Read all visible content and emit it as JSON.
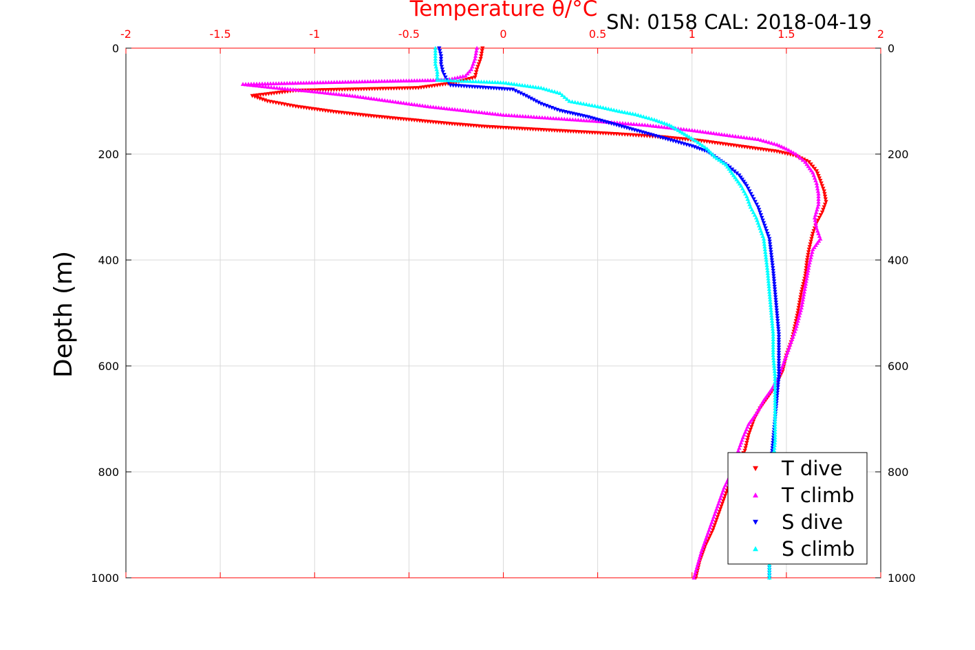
{
  "chart_data": {
    "type": "scatter",
    "title": "Temperature θ/°C",
    "caption": "SN: 0158  CAL: 2018-04-19",
    "xlabel": "Temperature θ/°C",
    "ylabel": "Depth (m)",
    "xlim": [
      -2,
      2
    ],
    "ylim": [
      0,
      1000
    ],
    "y_reversed": true,
    "x_axis_position": "top",
    "x_ticks": [
      "-2",
      "-1.5",
      "-1",
      "-0.5",
      "0",
      "0.5",
      "1",
      "1.5",
      "2"
    ],
    "y_ticks": [
      "0",
      "200",
      "400",
      "600",
      "800",
      "1000"
    ],
    "grid": true,
    "legend_position": "bottom-right",
    "colors": {
      "axis_top": "#ff0000",
      "t_dive": "#ff0000",
      "t_climb": "#ff00ff",
      "s_dive": "#0000ff",
      "s_climb": "#00ffff"
    },
    "series": [
      {
        "name": "T dive",
        "marker": "triangle-down",
        "color": "#ff0000",
        "points": [
          [
            -0.11,
            0
          ],
          [
            -0.12,
            20
          ],
          [
            -0.14,
            40
          ],
          [
            -0.15,
            55
          ],
          [
            -0.25,
            65
          ],
          [
            -0.45,
            75
          ],
          [
            -1.1,
            80
          ],
          [
            -1.33,
            90
          ],
          [
            -1.25,
            100
          ],
          [
            -1.1,
            110
          ],
          [
            -0.9,
            120
          ],
          [
            -0.7,
            128
          ],
          [
            -0.5,
            135
          ],
          [
            -0.3,
            142
          ],
          [
            -0.1,
            148
          ],
          [
            0.1,
            152
          ],
          [
            0.4,
            158
          ],
          [
            0.6,
            162
          ],
          [
            0.85,
            168
          ],
          [
            1.05,
            175
          ],
          [
            1.25,
            185
          ],
          [
            1.45,
            195
          ],
          [
            1.55,
            203
          ],
          [
            1.62,
            215
          ],
          [
            1.66,
            232
          ],
          [
            1.68,
            250
          ],
          [
            1.7,
            270
          ],
          [
            1.71,
            290
          ],
          [
            1.69,
            310
          ],
          [
            1.66,
            330
          ],
          [
            1.64,
            350
          ],
          [
            1.62,
            380
          ],
          [
            1.61,
            400
          ],
          [
            1.6,
            430
          ],
          [
            1.58,
            460
          ],
          [
            1.56,
            500
          ],
          [
            1.53,
            550
          ],
          [
            1.5,
            580
          ],
          [
            1.48,
            610
          ],
          [
            1.44,
            640
          ],
          [
            1.4,
            660
          ],
          [
            1.36,
            680
          ],
          [
            1.33,
            700
          ],
          [
            1.3,
            730
          ],
          [
            1.28,
            760
          ],
          [
            1.23,
            790
          ],
          [
            1.2,
            820
          ],
          [
            1.17,
            850
          ],
          [
            1.14,
            880
          ],
          [
            1.11,
            910
          ],
          [
            1.07,
            940
          ],
          [
            1.04,
            970
          ],
          [
            1.02,
            1000
          ]
        ]
      },
      {
        "name": "T climb",
        "marker": "triangle-up",
        "color": "#ff00ff",
        "points": [
          [
            -0.14,
            0
          ],
          [
            -0.15,
            20
          ],
          [
            -0.17,
            40
          ],
          [
            -0.2,
            52
          ],
          [
            -0.3,
            60
          ],
          [
            -0.6,
            62
          ],
          [
            -1.0,
            65
          ],
          [
            -1.38,
            68
          ],
          [
            -1.2,
            75
          ],
          [
            -1.0,
            82
          ],
          [
            -0.8,
            90
          ],
          [
            -0.6,
            100
          ],
          [
            -0.4,
            110
          ],
          [
            -0.2,
            118
          ],
          [
            0.0,
            126
          ],
          [
            0.25,
            132
          ],
          [
            0.5,
            138
          ],
          [
            0.75,
            145
          ],
          [
            1.0,
            155
          ],
          [
            1.2,
            165
          ],
          [
            1.35,
            172
          ],
          [
            1.45,
            182
          ],
          [
            1.5,
            190
          ],
          [
            1.55,
            200
          ],
          [
            1.6,
            215
          ],
          [
            1.64,
            235
          ],
          [
            1.66,
            255
          ],
          [
            1.67,
            275
          ],
          [
            1.67,
            295
          ],
          [
            1.65,
            320
          ],
          [
            1.66,
            340
          ],
          [
            1.68,
            360
          ],
          [
            1.64,
            380
          ],
          [
            1.62,
            410
          ],
          [
            1.6,
            450
          ],
          [
            1.58,
            490
          ],
          [
            1.55,
            530
          ],
          [
            1.52,
            560
          ],
          [
            1.49,
            590
          ],
          [
            1.46,
            620
          ],
          [
            1.42,
            645
          ],
          [
            1.38,
            665
          ],
          [
            1.34,
            690
          ],
          [
            1.3,
            710
          ],
          [
            1.27,
            735
          ],
          [
            1.24,
            765
          ],
          [
            1.21,
            800
          ],
          [
            1.17,
            830
          ],
          [
            1.14,
            860
          ],
          [
            1.11,
            890
          ],
          [
            1.08,
            920
          ],
          [
            1.05,
            950
          ],
          [
            1.03,
            975
          ],
          [
            1.01,
            1000
          ]
        ]
      },
      {
        "name": "S dive",
        "marker": "triangle-down",
        "color": "#0000ff",
        "points": [
          [
            -0.34,
            0
          ],
          [
            -0.33,
            15
          ],
          [
            -0.33,
            30
          ],
          [
            -0.32,
            45
          ],
          [
            -0.3,
            60
          ],
          [
            -0.28,
            70
          ],
          [
            0.05,
            78
          ],
          [
            0.12,
            90
          ],
          [
            0.2,
            105
          ],
          [
            0.3,
            118
          ],
          [
            0.45,
            130
          ],
          [
            0.6,
            145
          ],
          [
            0.75,
            160
          ],
          [
            0.9,
            175
          ],
          [
            1.0,
            185
          ],
          [
            1.08,
            195
          ],
          [
            1.14,
            210
          ],
          [
            1.2,
            225
          ],
          [
            1.25,
            240
          ],
          [
            1.29,
            260
          ],
          [
            1.32,
            280
          ],
          [
            1.35,
            300
          ],
          [
            1.37,
            320
          ],
          [
            1.39,
            340
          ],
          [
            1.41,
            360
          ],
          [
            1.42,
            390
          ],
          [
            1.43,
            420
          ],
          [
            1.44,
            460
          ],
          [
            1.45,
            500
          ],
          [
            1.46,
            540
          ],
          [
            1.46,
            580
          ],
          [
            1.46,
            620
          ],
          [
            1.45,
            660
          ],
          [
            1.44,
            700
          ],
          [
            1.43,
            740
          ],
          [
            1.42,
            780
          ],
          [
            1.42,
            820
          ],
          [
            1.42,
            860
          ],
          [
            1.42,
            900
          ],
          [
            1.42,
            940
          ],
          [
            1.41,
            970
          ],
          [
            1.41,
            1000
          ]
        ]
      },
      {
        "name": "S climb",
        "marker": "triangle-up",
        "color": "#00ffff",
        "points": [
          [
            -0.36,
            0
          ],
          [
            -0.36,
            15
          ],
          [
            -0.36,
            30
          ],
          [
            -0.35,
            45
          ],
          [
            -0.35,
            60
          ],
          [
            0.0,
            65
          ],
          [
            0.2,
            75
          ],
          [
            0.3,
            85
          ],
          [
            0.35,
            100
          ],
          [
            0.5,
            110
          ],
          [
            0.6,
            118
          ],
          [
            0.7,
            125
          ],
          [
            0.8,
            135
          ],
          [
            0.88,
            145
          ],
          [
            0.95,
            160
          ],
          [
            1.02,
            175
          ],
          [
            1.08,
            190
          ],
          [
            1.12,
            205
          ],
          [
            1.18,
            220
          ],
          [
            1.22,
            240
          ],
          [
            1.26,
            260
          ],
          [
            1.29,
            280
          ],
          [
            1.31,
            300
          ],
          [
            1.34,
            320
          ],
          [
            1.36,
            340
          ],
          [
            1.38,
            360
          ],
          [
            1.39,
            390
          ],
          [
            1.4,
            420
          ],
          [
            1.41,
            460
          ],
          [
            1.42,
            500
          ],
          [
            1.43,
            540
          ],
          [
            1.43,
            580
          ],
          [
            1.44,
            620
          ],
          [
            1.44,
            660
          ],
          [
            1.44,
            700
          ],
          [
            1.44,
            740
          ],
          [
            1.43,
            780
          ],
          [
            1.43,
            820
          ],
          [
            1.42,
            860
          ],
          [
            1.42,
            900
          ],
          [
            1.42,
            940
          ],
          [
            1.41,
            970
          ],
          [
            1.41,
            1000
          ]
        ]
      }
    ]
  }
}
